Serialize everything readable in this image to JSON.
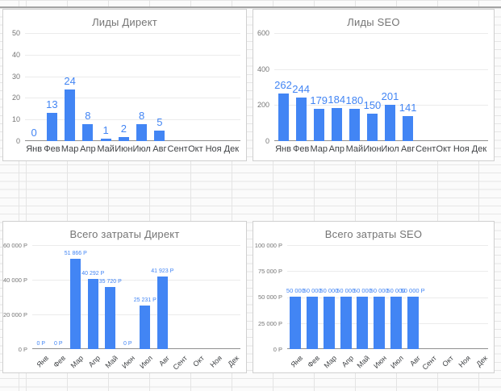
{
  "colors": {
    "bar_blue": "#4285f4",
    "data_label_blue": "#4285f4",
    "title_gray": "#757575",
    "grid_line": "#e4e4e4",
    "frozen_divider": "#a4a4a4"
  },
  "chart_data": [
    {
      "type": "bar",
      "title": "Лиды Директ",
      "categories": [
        "Янв",
        "Фев",
        "Мар",
        "Апр",
        "Май",
        "Июн",
        "Июл",
        "Авг",
        "Сент",
        "Окт",
        "Ноя",
        "Дек"
      ],
      "values": [
        0,
        13,
        24,
        8,
        1,
        2,
        8,
        5,
        null,
        null,
        null,
        null
      ],
      "data_labels": [
        "0",
        "13",
        "24",
        "8",
        "1",
        "2",
        "8",
        "5",
        "",
        "",
        "",
        ""
      ],
      "y_ticks": [
        {
          "value": 0,
          "label": "0"
        },
        {
          "value": 10,
          "label": "10"
        },
        {
          "value": 20,
          "label": "20"
        },
        {
          "value": 30,
          "label": "30"
        },
        {
          "value": 40,
          "label": "40"
        },
        {
          "value": 50,
          "label": "50"
        }
      ],
      "ylim": [
        0,
        50
      ],
      "x_label_rotation": 0,
      "grid": true,
      "legend": "none",
      "bar_color": "#4285f4"
    },
    {
      "type": "bar",
      "title": "Лиды SEO",
      "categories": [
        "Янв",
        "Фев",
        "Мар",
        "Апр",
        "Май",
        "Июн",
        "Июл",
        "Авг",
        "Сент",
        "Окт",
        "Ноя",
        "Дек"
      ],
      "values": [
        262,
        244,
        179,
        184,
        180,
        150,
        201,
        141,
        null,
        null,
        null,
        null
      ],
      "data_labels": [
        "262",
        "244",
        "179",
        "184",
        "180",
        "150",
        "201",
        "141",
        "",
        "",
        "",
        ""
      ],
      "y_ticks": [
        {
          "value": 0,
          "label": "0"
        },
        {
          "value": 200,
          "label": "200"
        },
        {
          "value": 400,
          "label": "400"
        },
        {
          "value": 600,
          "label": "600"
        }
      ],
      "ylim": [
        0,
        600
      ],
      "x_label_rotation": 0,
      "grid": true,
      "legend": "none",
      "bar_color": "#4285f4"
    },
    {
      "type": "bar",
      "title": "Всего затраты Директ",
      "categories": [
        "Янв",
        "Фев",
        "Мар",
        "Апр",
        "Май",
        "Июн",
        "Июл",
        "Авг",
        "Сент",
        "Окт",
        "Ноя",
        "Дек"
      ],
      "values": [
        0,
        0,
        51866,
        40292,
        35720,
        0,
        25231,
        41923,
        null,
        null,
        null,
        null
      ],
      "data_labels": [
        "0 Р",
        "0 Р",
        "51 866 Р",
        "40 292 Р",
        "35 720 Р",
        "0 Р",
        "25 231 Р",
        "41 923 Р",
        "",
        "",
        "",
        ""
      ],
      "y_ticks": [
        {
          "value": 0,
          "label": "0 Р"
        },
        {
          "value": 20000,
          "label": "20 000 Р"
        },
        {
          "value": 40000,
          "label": "40 000 Р"
        },
        {
          "value": 60000,
          "label": "60 000 Р"
        }
      ],
      "ylim": [
        0,
        60000
      ],
      "x_label_rotation": 45,
      "grid": true,
      "legend": "none",
      "bar_color": "#4285f4"
    },
    {
      "type": "bar",
      "title": "Всего затраты SEO",
      "categories": [
        "Янв",
        "Фев",
        "Мар",
        "Апр",
        "Май",
        "Июн",
        "Июл",
        "Авг",
        "Сент",
        "Окт",
        "Ноя",
        "Дек"
      ],
      "values": [
        50000,
        50000,
        50000,
        50000,
        50000,
        50000,
        50000,
        50000,
        null,
        null,
        null,
        null
      ],
      "data_labels": [
        "50 000",
        "50 000",
        "50 000",
        "50 000",
        "50 000",
        "50 000",
        "50 000",
        "50 000 Р",
        "",
        "",
        "",
        ""
      ],
      "y_ticks": [
        {
          "value": 0,
          "label": "0 Р"
        },
        {
          "value": 25000,
          "label": "25 000 Р"
        },
        {
          "value": 50000,
          "label": "50 000 Р"
        },
        {
          "value": 75000,
          "label": "75 000 Р"
        },
        {
          "value": 100000,
          "label": "100 000 Р"
        }
      ],
      "ylim": [
        0,
        100000
      ],
      "x_label_rotation": 45,
      "grid": true,
      "legend": "none",
      "bar_color": "#4285f4"
    }
  ]
}
